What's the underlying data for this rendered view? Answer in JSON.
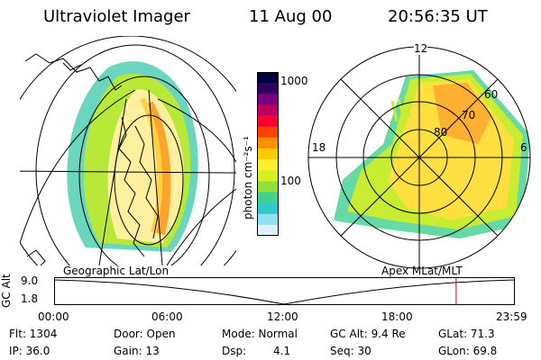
{
  "header": {
    "instrument": "Ultraviolet Imager",
    "date": "11 Aug 00",
    "time": "20:56:35 UT"
  },
  "left_panel": {
    "label": "Geographic Lat/Lon"
  },
  "right_panel": {
    "label": "Apex MLat/MLT",
    "mlt_labels": [
      "12",
      "18",
      "6"
    ],
    "lat_labels": [
      "60",
      "70",
      "80"
    ]
  },
  "colorbar": {
    "unit_label": "photon cm⁻²s⁻¹",
    "ticks": [
      "1000",
      "100"
    ],
    "colors": [
      "#000040",
      "#300060",
      "#7a0080",
      "#c00060",
      "#ff0030",
      "#ff4000",
      "#ff9000",
      "#ffcc00",
      "#ffee30",
      "#d8f020",
      "#90e040",
      "#40d090",
      "#30c8d0",
      "#90e0f0",
      "#e0f0ff"
    ]
  },
  "timeline": {
    "axis_title": "GC Alt",
    "y_ticks": [
      "9.0",
      "1.8"
    ],
    "x_ticks": [
      "00:00",
      "06:00",
      "12:00",
      "18:00",
      "23:59"
    ],
    "current_time_fraction": 0.8726,
    "marker_color": "#cc0000"
  },
  "info": {
    "flt": "Flt: 1304",
    "ip": "IP: 36.0",
    "door": "Door: Open",
    "gain": "Gain: 13",
    "mode": "Mode: Normal",
    "dsp_label": "Dsp:",
    "dsp_value": "4.1",
    "gcalt": "GC Alt: 9.4 Re",
    "seq": "Seq: 30",
    "glat": "GLat:  71.3",
    "glon": "GLon:  69.8"
  }
}
